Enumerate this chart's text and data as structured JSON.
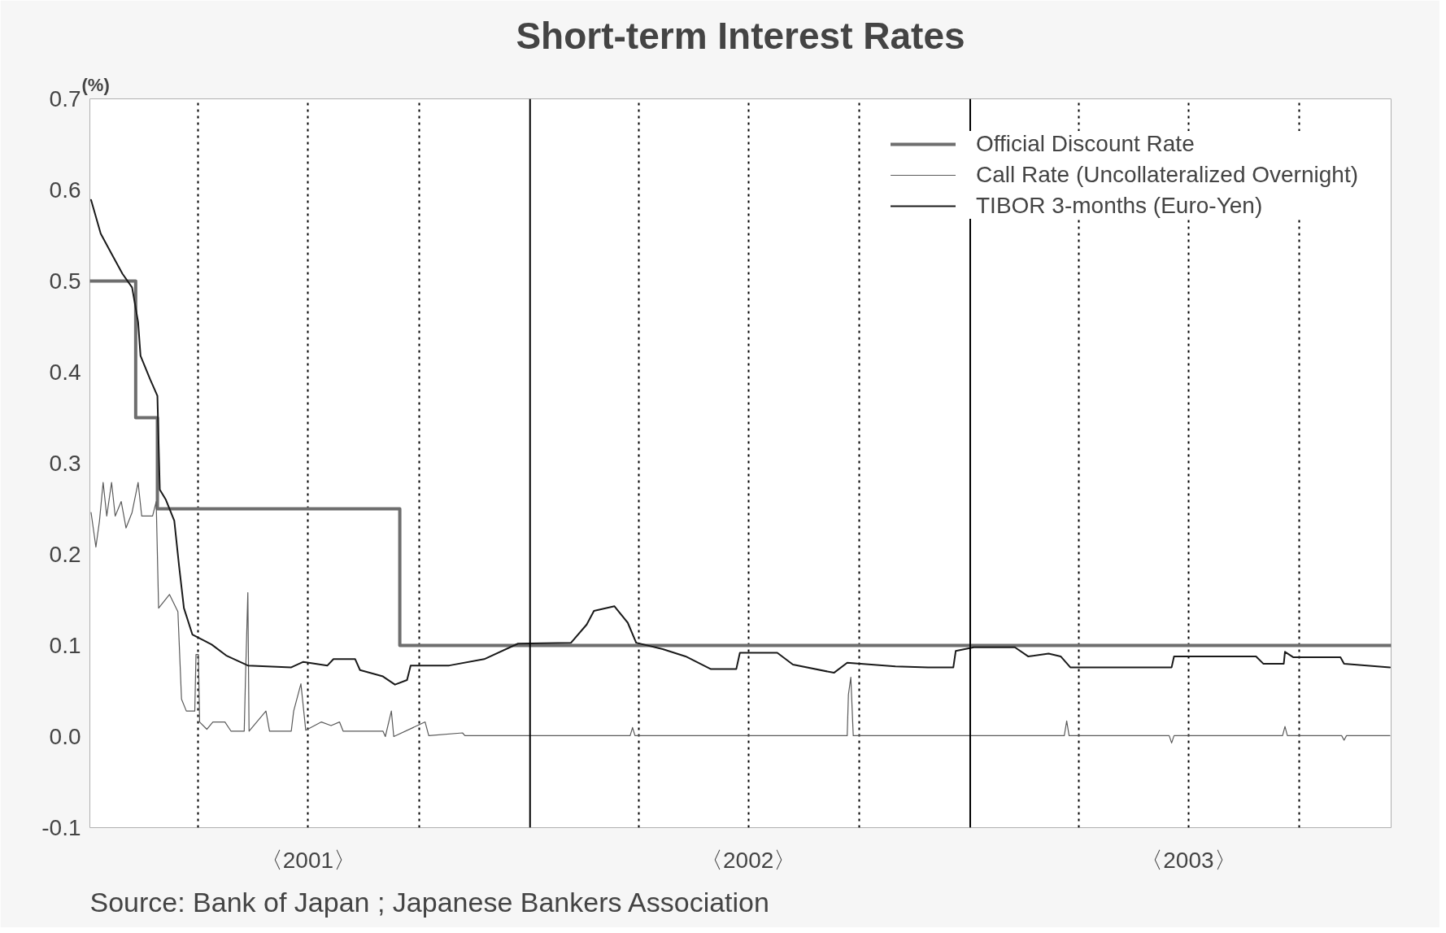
{
  "chart_data": {
    "type": "line",
    "title": "Short-term Interest Rates",
    "ylabel": "(%)",
    "annotations": [
      "Source: Bank of Japan ; Japanese Bankers Association"
    ],
    "xlim": [
      "2001-01-01",
      "2003-12-16"
    ],
    "ylim": [
      -0.1,
      0.7
    ],
    "xticks": [
      {
        "value": "2001-04-01",
        "label": null
      },
      {
        "value": "2001-07-01",
        "label": "〈2001〉"
      },
      {
        "value": "2001-10-01",
        "label": null
      },
      {
        "value": "2002-04-01",
        "label": null
      },
      {
        "value": "2002-07-01",
        "label": "〈2002〉"
      },
      {
        "value": "2002-10-01",
        "label": null
      },
      {
        "value": "2003-04-01",
        "label": null
      },
      {
        "value": "2003-07-01",
        "label": "〈2003〉"
      },
      {
        "value": "2003-10-01",
        "label": null
      }
    ],
    "yticks": [
      -0.1,
      {
        "value": 0,
        "label": "0.0"
      },
      0.1,
      0.2,
      0.3,
      0.4,
      0.5,
      0.6,
      0.7
    ],
    "grid": "x",
    "legend": "top right",
    "marker": "none",
    "line_style": "solid",
    "ref_lines": [
      {
        "axis": "x",
        "value": "2002-01-01",
        "color": "#000000",
        "line_style": "solid"
      },
      {
        "axis": "x",
        "value": "2003-01-01",
        "color": "#000000",
        "line_style": "solid"
      }
    ],
    "series": [
      {
        "name": "Official Discount Rate",
        "type": "step",
        "color": "#6e6e6e",
        "x": [
          "2001-01-01",
          "2001-02-08",
          "2001-02-26",
          "2001-09-15",
          "2003-12-16"
        ],
        "values": [
          0.5,
          0.35,
          0.25,
          0.1,
          0.1
        ]
      },
      {
        "name": "Call Rate (Uncollateralized Overnight)",
        "color": "#5a5a5a",
        "x": [
          "2001-01-02",
          "2001-01-06",
          "2001-01-09",
          "2001-01-12",
          "2001-01-15",
          "2001-01-19",
          "2001-01-22",
          "2001-01-27",
          "2001-01-31",
          "2001-02-05",
          "2001-02-10",
          "2001-02-13",
          "2001-02-22",
          "2001-02-25",
          "2001-02-27",
          "2001-03-08",
          "2001-03-15",
          "2001-03-18",
          "2001-03-22",
          "2001-03-29",
          "2001-03-30",
          "2001-04-01",
          "2001-04-02",
          "2001-04-08",
          "2001-04-13",
          "2001-04-23",
          "2001-04-28",
          "2001-05-09",
          "2001-05-10",
          "2001-05-12",
          "2001-05-13",
          "2001-05-27",
          "2001-05-30",
          "2001-06-17",
          "2001-06-19",
          "2001-06-25",
          "2001-06-29",
          "2001-07-12",
          "2001-07-20",
          "2001-07-27",
          "2001-07-30",
          "2001-09-01",
          "2001-09-03",
          "2001-09-08",
          "2001-09-10",
          "2001-10-06",
          "2001-10-09",
          "2001-11-06",
          "2001-11-08",
          "2002-03-25",
          "2002-03-27",
          "2002-03-29",
          "2002-09-21",
          "2002-09-22",
          "2002-09-24",
          "2002-09-26",
          "2003-03-20",
          "2003-03-22",
          "2003-03-24",
          "2003-06-15",
          "2003-06-17",
          "2003-06-19",
          "2003-09-17",
          "2003-09-19",
          "2003-09-21",
          "2003-11-05",
          "2003-11-07",
          "2003-11-09",
          "2003-12-15"
        ],
        "values": [
          0.246,
          0.208,
          0.237,
          0.279,
          0.242,
          0.279,
          0.242,
          0.258,
          0.229,
          0.246,
          0.279,
          0.242,
          0.242,
          0.258,
          0.141,
          0.156,
          0.137,
          0.041,
          0.028,
          0.028,
          0.09,
          0.09,
          0.016,
          0.008,
          0.016,
          0.016,
          0.006,
          0.006,
          0.062,
          0.158,
          0.006,
          0.028,
          0.006,
          0.006,
          0.028,
          0.058,
          0.007,
          0.016,
          0.012,
          0.016,
          0.006,
          0.006,
          0.0,
          0.028,
          0.0,
          0.016,
          0.001,
          0.004,
          0.001,
          0.001,
          0.01,
          0.001,
          0.001,
          0.046,
          0.065,
          0.001,
          0.001,
          0.017,
          0.001,
          0.001,
          -0.007,
          0.001,
          0.001,
          0.011,
          0.001,
          0.001,
          -0.004,
          0.001,
          0.001
        ]
      },
      {
        "name": "TIBOR 3-months (Euro-Yen)",
        "color": "#1a1a1a",
        "x": [
          "2001-01-02",
          "2001-01-10",
          "2001-01-19",
          "2001-01-28",
          "2001-02-05",
          "2001-02-10",
          "2001-02-12",
          "2001-02-20",
          "2001-02-26",
          "2001-02-28",
          "2001-03-05",
          "2001-03-12",
          "2001-03-16",
          "2001-03-20",
          "2001-03-27",
          "2001-04-12",
          "2001-04-24",
          "2001-05-12",
          "2001-06-17",
          "2001-06-27",
          "2001-07-17",
          "2001-07-22",
          "2001-08-09",
          "2001-08-13",
          "2001-09-01",
          "2001-09-11",
          "2001-09-21",
          "2001-09-24",
          "2001-10-26",
          "2001-11-24",
          "2001-12-22",
          "2002-02-04",
          "2002-02-17",
          "2002-02-23",
          "2002-03-12",
          "2002-03-23",
          "2002-03-30",
          "2002-04-21",
          "2002-05-10",
          "2002-05-31",
          "2002-06-21",
          "2002-06-24",
          "2002-07-25",
          "2002-08-07",
          "2002-09-10",
          "2002-09-21",
          "2002-10-31",
          "2002-11-27",
          "2002-12-18",
          "2002-12-20",
          "2003-01-04",
          "2003-02-07",
          "2003-02-18",
          "2003-03-07",
          "2003-03-17",
          "2003-03-25",
          "2003-06-17",
          "2003-06-19",
          "2003-08-26",
          "2003-09-01",
          "2003-09-18",
          "2003-09-19",
          "2003-09-26",
          "2003-11-04",
          "2003-11-07",
          "2003-12-15"
        ],
        "values": [
          0.589,
          0.552,
          0.53,
          0.508,
          0.493,
          0.455,
          0.418,
          0.392,
          0.374,
          0.271,
          0.26,
          0.237,
          0.187,
          0.141,
          0.112,
          0.101,
          0.089,
          0.078,
          0.076,
          0.082,
          0.078,
          0.085,
          0.085,
          0.073,
          0.066,
          0.057,
          0.062,
          0.078,
          0.078,
          0.085,
          0.102,
          0.103,
          0.123,
          0.138,
          0.143,
          0.125,
          0.103,
          0.096,
          0.088,
          0.074,
          0.074,
          0.092,
          0.092,
          0.079,
          0.07,
          0.081,
          0.077,
          0.076,
          0.076,
          0.094,
          0.098,
          0.098,
          0.088,
          0.091,
          0.088,
          0.076,
          0.076,
          0.088,
          0.088,
          0.08,
          0.08,
          0.093,
          0.087,
          0.087,
          0.08,
          0.076
        ]
      }
    ]
  }
}
